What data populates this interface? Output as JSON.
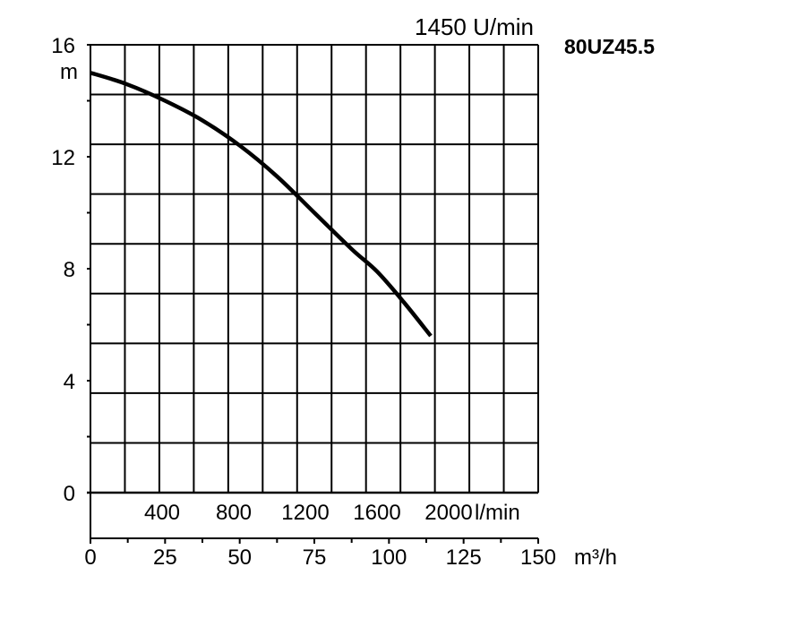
{
  "chart_data": {
    "type": "line",
    "title": "80UZ45.5",
    "speed_label": "1450 U/min",
    "y_unit": "m",
    "y_ticks": [
      "0",
      "4",
      "8",
      "12",
      "16"
    ],
    "ylim": [
      0,
      16
    ],
    "x_unit": "m³/h",
    "x_ticks": [
      "0",
      "25",
      "50",
      "75",
      "100",
      "125",
      "150"
    ],
    "xlim": [
      0,
      150
    ],
    "x2_ticks": [
      "400",
      "800",
      "1200",
      "1600",
      "2000"
    ],
    "x2_tick_values_m3h": [
      24,
      48,
      72,
      96,
      120
    ],
    "x2_unit": "l/min",
    "grid": true,
    "series": [
      {
        "x": [
          0,
          12,
          25,
          37.5,
          50,
          62.5,
          75,
          87.5,
          96,
          105,
          114
        ],
        "y": [
          15.0,
          14.6,
          14.0,
          13.3,
          12.4,
          11.3,
          10.0,
          8.7,
          7.9,
          6.8,
          5.6
        ]
      }
    ]
  }
}
